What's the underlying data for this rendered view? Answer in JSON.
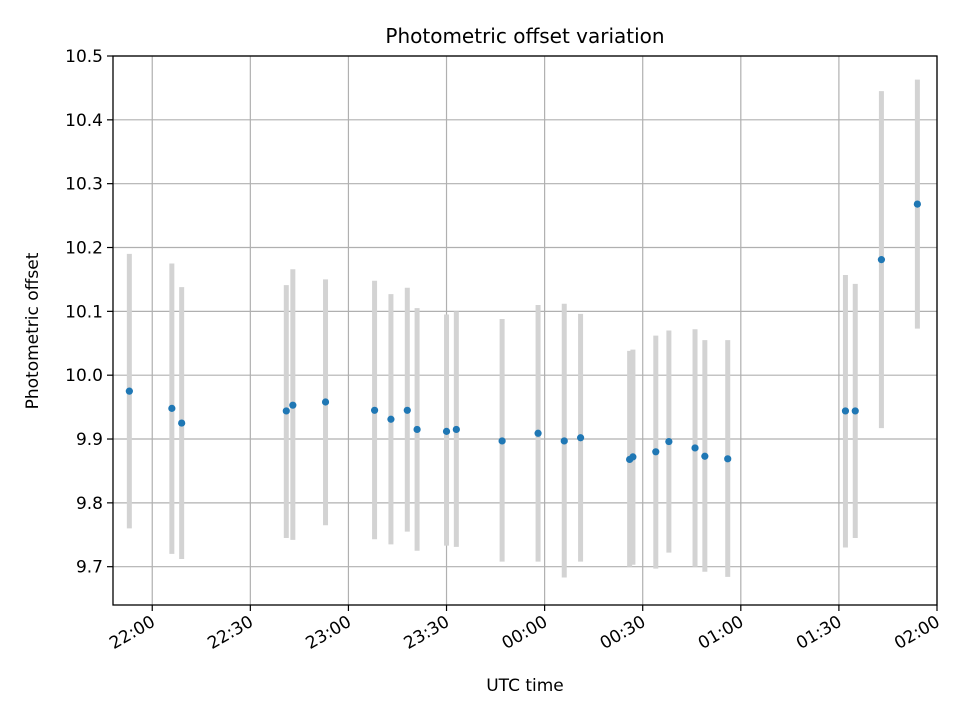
{
  "chart_data": {
    "type": "scatter",
    "title": "Photometric offset variation",
    "xlabel": "UTC time",
    "ylabel": "Photometric offset",
    "x_ticks": [
      "22:00",
      "22:30",
      "23:00",
      "23:30",
      "00:00",
      "00:30",
      "01:00",
      "01:30",
      "02:00"
    ],
    "y_ticks": [
      "9.7",
      "9.8",
      "9.9",
      "10.0",
      "10.1",
      "10.2",
      "10.3",
      "10.4",
      "10.5"
    ],
    "xlim": [
      "21:48",
      "02:00"
    ],
    "ylim": [
      9.64,
      10.5
    ],
    "grid": true,
    "colors": {
      "point": "#1f77b4",
      "errorbar": "#d3d3d3",
      "grid": "#b0b0b0"
    },
    "points": [
      {
        "x": "21:53",
        "y": 9.975,
        "err_low": 9.76,
        "err_high": 10.19
      },
      {
        "x": "22:06",
        "y": 9.948,
        "err_low": 9.72,
        "err_high": 10.175
      },
      {
        "x": "22:09",
        "y": 9.925,
        "err_low": 9.712,
        "err_high": 10.138
      },
      {
        "x": "22:41",
        "y": 9.944,
        "err_low": 9.745,
        "err_high": 10.141
      },
      {
        "x": "22:43",
        "y": 9.953,
        "err_low": 9.742,
        "err_high": 10.166
      },
      {
        "x": "22:53",
        "y": 9.958,
        "err_low": 9.765,
        "err_high": 10.15
      },
      {
        "x": "23:08",
        "y": 9.945,
        "err_low": 9.743,
        "err_high": 10.148
      },
      {
        "x": "23:13",
        "y": 9.931,
        "err_low": 9.735,
        "err_high": 10.127
      },
      {
        "x": "23:18",
        "y": 9.945,
        "err_low": 9.755,
        "err_high": 10.137
      },
      {
        "x": "23:21",
        "y": 9.915,
        "err_low": 9.725,
        "err_high": 10.105
      },
      {
        "x": "23:30",
        "y": 9.912,
        "err_low": 9.733,
        "err_high": 10.095
      },
      {
        "x": "23:33",
        "y": 9.915,
        "err_low": 9.731,
        "err_high": 10.1
      },
      {
        "x": "23:47",
        "y": 9.897,
        "err_low": 9.708,
        "err_high": 10.088
      },
      {
        "x": "23:58",
        "y": 9.909,
        "err_low": 9.708,
        "err_high": 10.11
      },
      {
        "x": "00:06",
        "y": 9.897,
        "err_low": 9.683,
        "err_high": 10.112
      },
      {
        "x": "00:11",
        "y": 9.902,
        "err_low": 9.708,
        "err_high": 10.096
      },
      {
        "x": "00:26",
        "y": 9.868,
        "err_low": 9.7,
        "err_high": 10.038
      },
      {
        "x": "00:27",
        "y": 9.872,
        "err_low": 9.703,
        "err_high": 10.04
      },
      {
        "x": "00:34",
        "y": 9.88,
        "err_low": 9.697,
        "err_high": 10.062
      },
      {
        "x": "00:38",
        "y": 9.896,
        "err_low": 9.722,
        "err_high": 10.07
      },
      {
        "x": "00:46",
        "y": 9.886,
        "err_low": 9.7,
        "err_high": 10.072
      },
      {
        "x": "00:49",
        "y": 9.873,
        "err_low": 9.692,
        "err_high": 10.055
      },
      {
        "x": "00:56",
        "y": 9.869,
        "err_low": 9.684,
        "err_high": 10.055
      },
      {
        "x": "01:32",
        "y": 9.944,
        "err_low": 9.73,
        "err_high": 10.157
      },
      {
        "x": "01:35",
        "y": 9.944,
        "err_low": 9.745,
        "err_high": 10.143
      },
      {
        "x": "01:43",
        "y": 10.181,
        "err_low": 9.917,
        "err_high": 10.445
      },
      {
        "x": "01:54",
        "y": 10.268,
        "err_low": 10.073,
        "err_high": 10.463
      }
    ]
  }
}
